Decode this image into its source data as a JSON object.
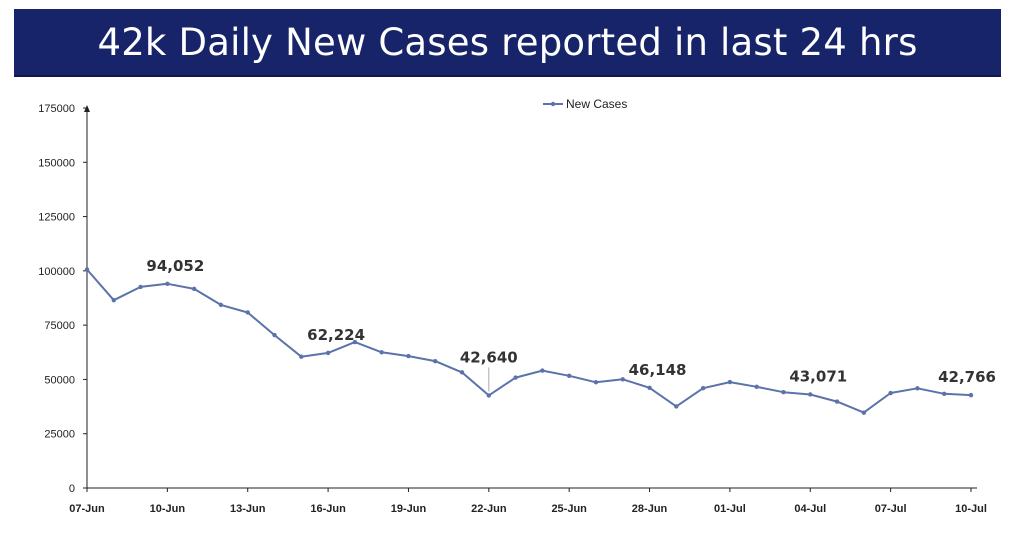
{
  "header": {
    "title": "42k Daily New Cases reported in last 24 hrs"
  },
  "colors": {
    "banner": "#17246a",
    "series": "#5b73aa"
  },
  "chart_data": {
    "type": "line",
    "title": "",
    "xlabel": "",
    "ylabel": "",
    "ylim": [
      0,
      175000
    ],
    "yticks": [
      0,
      25000,
      50000,
      75000,
      100000,
      125000,
      150000,
      175000
    ],
    "xtick_labels": [
      "07-Jun",
      "10-Jun",
      "13-Jun",
      "16-Jun",
      "19-Jun",
      "22-Jun",
      "25-Jun",
      "28-Jun",
      "01-Jul",
      "04-Jul",
      "07-Jul",
      "10-Jul"
    ],
    "legend": "top-center",
    "grid": false,
    "x": [
      "07-Jun",
      "08-Jun",
      "09-Jun",
      "10-Jun",
      "11-Jun",
      "12-Jun",
      "13-Jun",
      "14-Jun",
      "15-Jun",
      "16-Jun",
      "17-Jun",
      "18-Jun",
      "19-Jun",
      "20-Jun",
      "21-Jun",
      "22-Jun",
      "23-Jun",
      "24-Jun",
      "25-Jun",
      "26-Jun",
      "27-Jun",
      "28-Jun",
      "29-Jun",
      "30-Jun",
      "01-Jul",
      "02-Jul",
      "03-Jul",
      "04-Jul",
      "05-Jul",
      "06-Jul",
      "07-Jul",
      "08-Jul",
      "09-Jul",
      "10-Jul"
    ],
    "series": [
      {
        "name": "New Cases",
        "values": [
          100636,
          86498,
          92596,
          94052,
          91702,
          84332,
          80834,
          70421,
          60471,
          62224,
          67208,
          62480,
          60753,
          58419,
          53256,
          42640,
          50848,
          54069,
          51667,
          48698,
          50040,
          46148,
          37566,
          45951,
          48786,
          46617,
          44111,
          43071,
          39796,
          34703,
          43733,
          45892,
          43393,
          42766
        ]
      }
    ],
    "annotations": [
      {
        "x": "10-Jun",
        "label": "94,052"
      },
      {
        "x": "16-Jun",
        "label": "62,224"
      },
      {
        "x": "22-Jun",
        "label": "42,640"
      },
      {
        "x": "28-Jun",
        "label": "46,148"
      },
      {
        "x": "04-Jul",
        "label": "43,071"
      },
      {
        "x": "10-Jul",
        "label": "42,766"
      }
    ]
  }
}
